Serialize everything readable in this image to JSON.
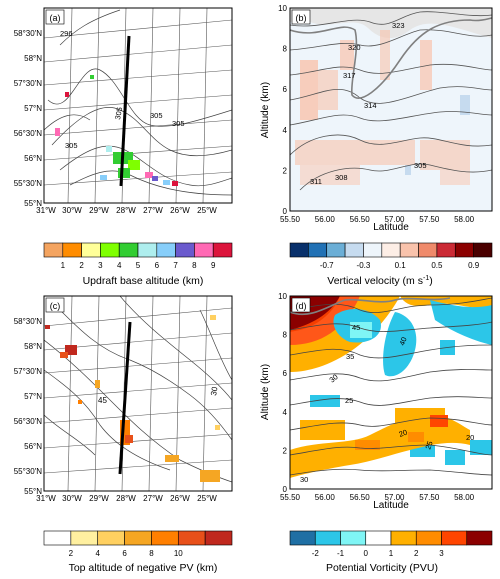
{
  "chart_data": [
    {
      "panel": "(a)",
      "type": "map",
      "x_ticks": [
        "31°W",
        "30°W",
        "29°W",
        "28°W",
        "27°W",
        "26°W",
        "25°W"
      ],
      "y_ticks": [
        "55°N",
        "55°30'N",
        "56°N",
        "56°30'N",
        "57°N",
        "57°30'N",
        "58°N",
        "58°30'N"
      ],
      "contour_labels": [
        "296",
        "305",
        "305",
        "305",
        "305"
      ],
      "colorbar": {
        "title": "Updraft base altitude (km)",
        "labels": [
          "1",
          "2",
          "3",
          "4",
          "5",
          "6",
          "7",
          "8",
          "9"
        ],
        "colors": [
          "#f4a460",
          "#ff8c00",
          "#ffff99",
          "#7fff00",
          "#32cd32",
          "#aeeeee",
          "#87cefa",
          "#6a5acd",
          "#ff69b4",
          "#dc143c"
        ]
      },
      "cross_section_line": {
        "start": [
          -28.3,
          58.3
        ],
        "end": [
          -28.7,
          55.5
        ]
      }
    },
    {
      "panel": "(b)",
      "type": "heatmap",
      "xlabel": "Latitude",
      "ylabel": "Altitude (km)",
      "xlim": [
        55.5,
        58.4
      ],
      "ylim": [
        0,
        10
      ],
      "x_ticks": [
        "55.50",
        "56.00",
        "56.50",
        "57.00",
        "57.50",
        "58.00"
      ],
      "y_ticks": [
        "0",
        "2",
        "4",
        "6",
        "8",
        "10"
      ],
      "contour_labels": [
        "323",
        "320",
        "317",
        "314",
        "311",
        "308",
        "305"
      ],
      "colorbar": {
        "title": "Vertical velocity (m s",
        "title_sup": "-1",
        "title_end": ")",
        "labels": [
          "-0.7",
          "-0.3",
          "0.1",
          "0.5",
          "0.9"
        ],
        "colors": [
          "#08306b",
          "#2171b5",
          "#6baed6",
          "#c6dbef",
          "#eef5fb",
          "#fdeee6",
          "#f9c3ac",
          "#ef8a6b",
          "#cb2a35",
          "#8b0000",
          "#4a0000"
        ]
      }
    },
    {
      "panel": "(c)",
      "type": "map",
      "x_ticks": [
        "31°W",
        "30°W",
        "29°W",
        "28°W",
        "27°W",
        "26°W",
        "25°W"
      ],
      "y_ticks": [
        "55°N",
        "55°30'N",
        "56°N",
        "56°30'N",
        "57°N",
        "57°30'N",
        "58°N",
        "58°30'N"
      ],
      "contour_labels": [
        "45",
        "30"
      ],
      "colorbar": {
        "title": "Top altitude of negative PV (km)",
        "labels": [
          "2",
          "4",
          "6",
          "8",
          "10"
        ],
        "colors": [
          "#ffffff",
          "#fff0a0",
          "#ffd060",
          "#f5a623",
          "#ff7f00",
          "#e8501a",
          "#c0281e"
        ]
      },
      "cross_section_line": {
        "start": [
          -28.3,
          58.3
        ],
        "end": [
          -28.7,
          55.5
        ]
      }
    },
    {
      "panel": "(d)",
      "type": "heatmap",
      "xlabel": "Latitude",
      "ylabel": "Altitude (km)",
      "xlim": [
        55.5,
        58.4
      ],
      "ylim": [
        0,
        10
      ],
      "x_ticks": [
        "55.50",
        "56.00",
        "56.50",
        "57.00",
        "57.50",
        "58.00"
      ],
      "y_ticks": [
        "0",
        "2",
        "4",
        "6",
        "8",
        "10"
      ],
      "contour_labels": [
        "45",
        "40",
        "35",
        "30",
        "25",
        "20",
        "20",
        "25",
        "30"
      ],
      "colorbar": {
        "title": "Potential Vorticity (PVU)",
        "labels": [
          "-2",
          "-1",
          "0",
          "1",
          "2",
          "3"
        ],
        "colors": [
          "#1f6fa4",
          "#2cc6e8",
          "#7ff5f5",
          "#ffffff",
          "#ffb000",
          "#ff8c00",
          "#ff4500",
          "#8b0000"
        ]
      }
    }
  ]
}
